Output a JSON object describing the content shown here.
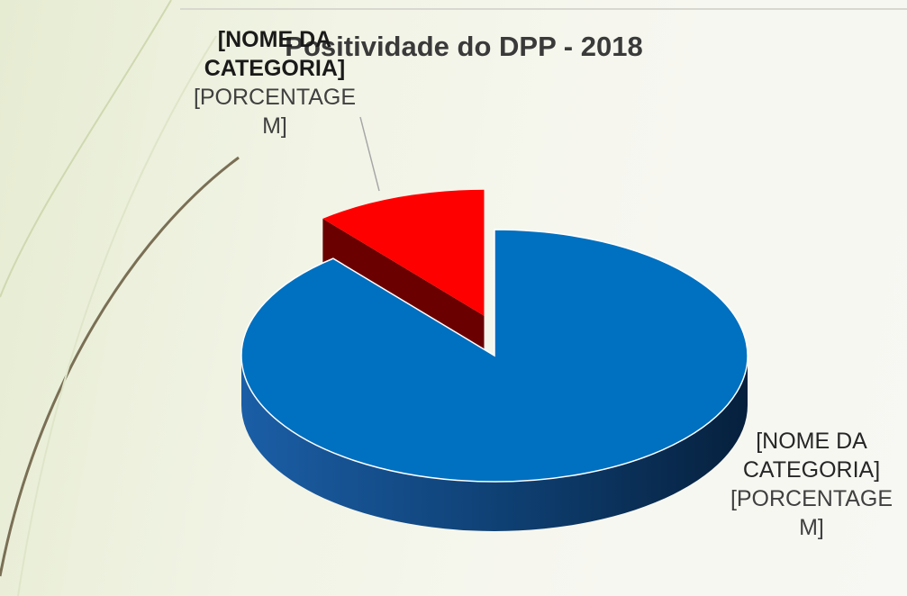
{
  "chart_data": {
    "type": "pie",
    "title": "Positividade do DPP - 2018",
    "categories": [
      "[NOME DA CATEGORIA]",
      "[NOME DA CATEGORIA]"
    ],
    "values": [
      89,
      11
    ],
    "value_labels": [
      "[PORCENTAGEM]",
      "[PORCENTAGEM]"
    ],
    "colors": [
      "#0070c0",
      "#ff0000"
    ]
  }
}
